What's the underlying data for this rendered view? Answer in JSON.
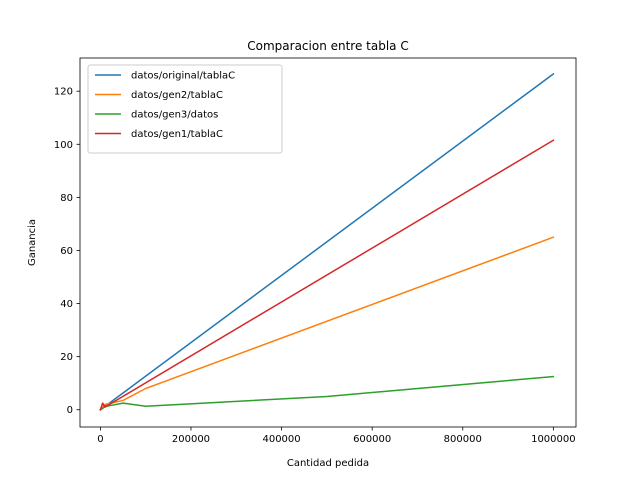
{
  "chart_data": {
    "type": "line",
    "title": "Comparacion entre tabla C",
    "xlabel": "Cantidad pedida",
    "ylabel": "Ganancia",
    "xlim": [
      -45000,
      1050000
    ],
    "ylim": [
      -6.5,
      132.5
    ],
    "xticks": [
      0,
      200000,
      400000,
      600000,
      800000,
      1000000
    ],
    "yticks": [
      0,
      20,
      40,
      60,
      80,
      100,
      120
    ],
    "grid": false,
    "legend_position": "top-left",
    "series": [
      {
        "name": "datos/original/tablaC",
        "color": "#1f77b4",
        "points": [
          [
            0,
            0
          ],
          [
            1000000,
            126.5
          ]
        ]
      },
      {
        "name": "datos/gen2/tablaC",
        "color": "#ff7f0e",
        "points": [
          [
            0,
            0
          ],
          [
            5000,
            1.0
          ],
          [
            10000,
            2.0
          ],
          [
            50000,
            3.5
          ],
          [
            100000,
            8.0
          ],
          [
            1000000,
            65.0
          ]
        ]
      },
      {
        "name": "datos/gen3/datos",
        "color": "#2ca02c",
        "points": [
          [
            0,
            0
          ],
          [
            5000,
            0.5
          ],
          [
            10000,
            1.2
          ],
          [
            50000,
            2.5
          ],
          [
            100000,
            1.3
          ],
          [
            500000,
            5.0
          ],
          [
            1000000,
            12.5
          ]
        ]
      },
      {
        "name": "datos/gen1/tablaC",
        "color": "#d62728",
        "points": [
          [
            0,
            0
          ],
          [
            5000,
            2.5
          ],
          [
            10000,
            1.0
          ],
          [
            1000000,
            101.5
          ]
        ]
      }
    ]
  }
}
